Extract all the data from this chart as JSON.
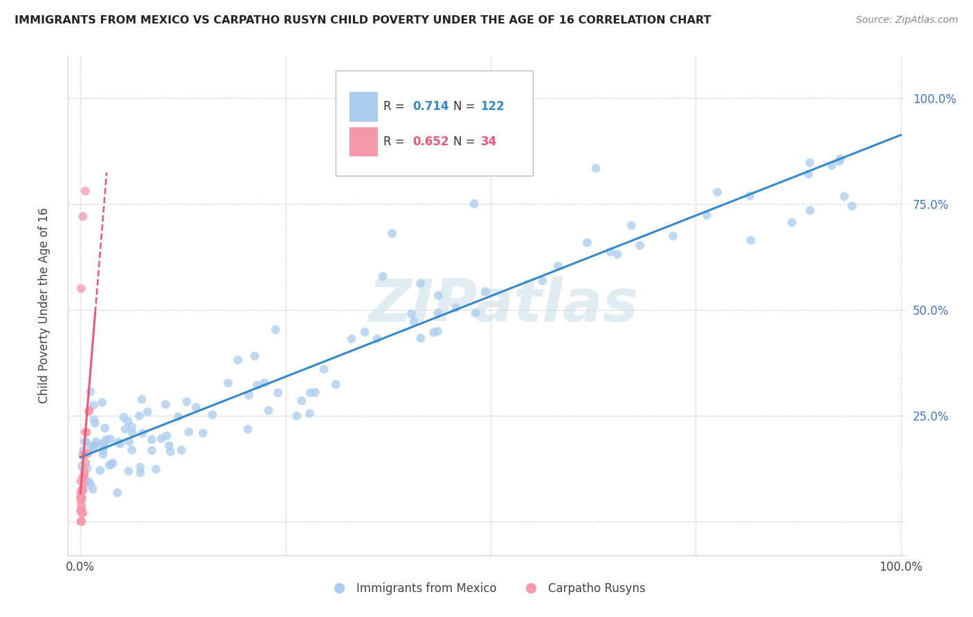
{
  "title": "IMMIGRANTS FROM MEXICO VS CARPATHO RUSYN CHILD POVERTY UNDER THE AGE OF 16 CORRELATION CHART",
  "source": "Source: ZipAtlas.com",
  "ylabel_text": "Child Poverty Under the Age of 16",
  "legend_label_1": "Immigrants from Mexico",
  "legend_label_2": "Carpatho Rusyns",
  "r1": 0.714,
  "n1": 122,
  "r2": 0.652,
  "n2": 34,
  "scatter_color_1": "#aaccee",
  "scatter_color_2": "#f599aa",
  "line_color_1": "#3388cc",
  "line_color_2": "#ee5577",
  "r_color_1": "#3388cc",
  "r_color_2": "#ee5577",
  "background_color": "#ffffff",
  "watermark_color": "#c8dde8",
  "tick_color": "#4477bb",
  "xlim": [
    -0.015,
    1.005
  ],
  "ylim": [
    -0.08,
    1.1
  ]
}
